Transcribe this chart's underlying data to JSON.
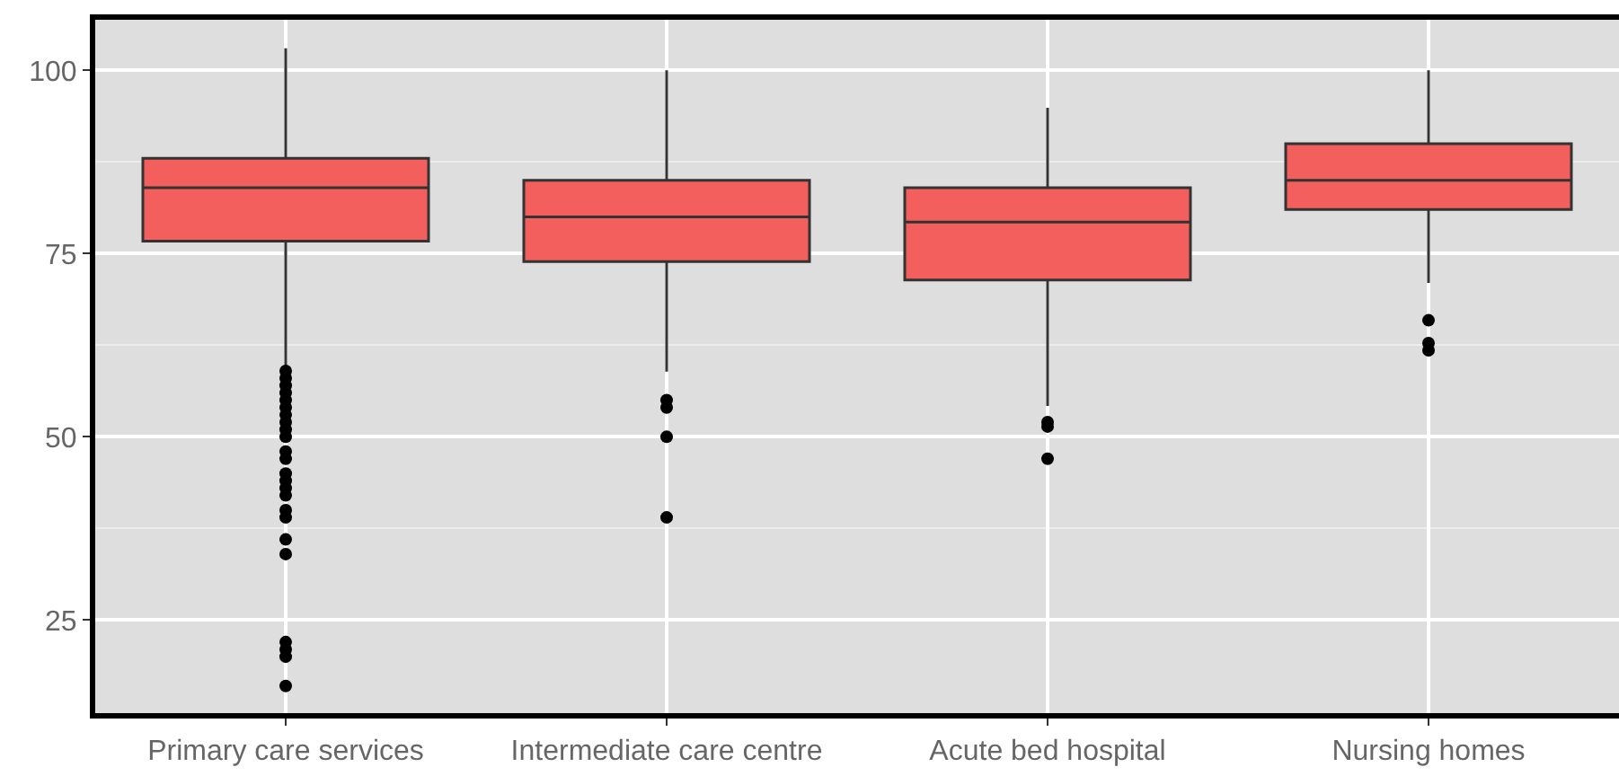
{
  "chart_data": {
    "type": "box",
    "categories": [
      "Primary care services",
      "Intermediate care centre",
      "Acute bed hospital",
      "Nursing homes"
    ],
    "ylim": [
      12.3,
      106.9
    ],
    "yticks": [
      25,
      50,
      75,
      100
    ],
    "grid": true,
    "series": [
      {
        "color": "#f25f5c",
        "boxes": [
          {
            "low": 59.3,
            "q1": 76.7,
            "median": 84,
            "q3": 88,
            "high": 103,
            "outliers": [
              59,
              58,
              57,
              56,
              55,
              54,
              53,
              52,
              51,
              50,
              48,
              47,
              45,
              44,
              43,
              42,
              40,
              39,
              36,
              34,
              22,
              21,
              20,
              16
            ]
          },
          {
            "low": 58.9,
            "q1": 73.9,
            "median": 80,
            "q3": 85,
            "high": 100,
            "outliers": [
              55,
              54,
              50,
              39
            ]
          },
          {
            "low": 54.2,
            "q1": 71.4,
            "median": 79.3,
            "q3": 84,
            "high": 94.9,
            "outliers": [
              52,
              51.4,
              47
            ]
          },
          {
            "low": 71,
            "q1": 81,
            "median": 85,
            "q3": 90,
            "high": 100,
            "outliers": [
              65.9,
              62.8,
              61.8
            ]
          }
        ]
      }
    ]
  }
}
